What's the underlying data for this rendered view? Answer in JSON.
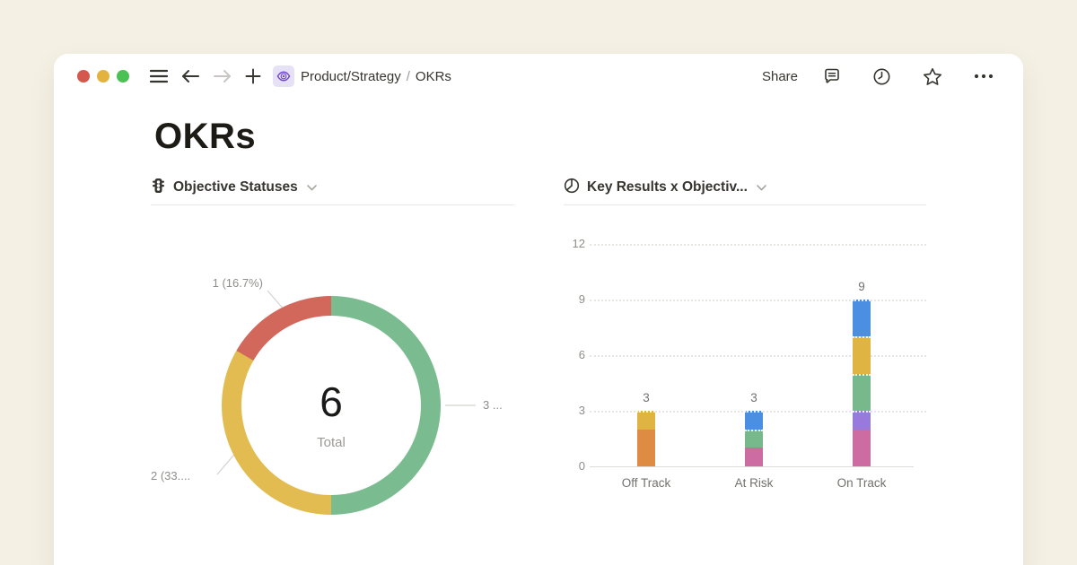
{
  "colors": {
    "background": "#F5F0E4",
    "card": "#FFFFFF",
    "text_dark": "#37352F",
    "text_gray": "#8F8E8B",
    "accent_purple": "#7A4FD8",
    "traffic_red": "#D5584E",
    "traffic_yellow": "#E3B33F",
    "traffic_green": "#4BC053"
  },
  "window": {
    "breadcrumb": {
      "parent": "Product/Strategy",
      "separator": "/",
      "current": "OKRs"
    },
    "share_label": "Share",
    "icons": [
      "sidebar-menu-icon",
      "back-arrow-icon",
      "forward-arrow-icon",
      "new-page-icon",
      "page-eye-icon",
      "comments-icon",
      "updates-clock-icon",
      "favorite-star-icon",
      "more-options-icon"
    ]
  },
  "page": {
    "title": "OKRs"
  },
  "sections": {
    "donut": {
      "title": "Objective Statuses",
      "icon": "traffic-light-icon"
    },
    "bar": {
      "title": "Key Results x Objectiv...",
      "icon": "pie-chart-icon"
    }
  },
  "chart_data": [
    {
      "type": "pie",
      "subtype": "donut",
      "title": "Objective Statuses",
      "center_value": "6",
      "center_label": "Total",
      "total": 6,
      "start_angle": "top",
      "direction": "clockwise",
      "slices": [
        {
          "value": 3,
          "percent": 50.0,
          "label": "3 ...",
          "color": "#7ABC90"
        },
        {
          "value": 2,
          "percent": 33.3,
          "label": "2 (33....",
          "color": "#E2BC50"
        },
        {
          "value": 1,
          "percent": 16.7,
          "label": "1 (16.7%)",
          "color": "#D2685C"
        }
      ]
    },
    {
      "type": "bar",
      "stacked": true,
      "title": "Key Results x Objectiv...",
      "categories": [
        "Off Track",
        "At Risk",
        "On Track"
      ],
      "totals": [
        3,
        3,
        9
      ],
      "ylim": [
        0,
        12
      ],
      "yticks": [
        0,
        3,
        6,
        9,
        12
      ],
      "grid": "dotted-horizontal",
      "legend": "none",
      "stacks": [
        [
          {
            "value": 2,
            "color": "#DE8C44"
          },
          {
            "value": 1,
            "color": "#E0B443"
          }
        ],
        [
          {
            "value": 1,
            "color": "#CD6CA2"
          },
          {
            "value": 1,
            "color": "#77B98A"
          },
          {
            "value": 1,
            "color": "#4B8FE2"
          }
        ],
        [
          {
            "value": 2,
            "color": "#CD6CA2"
          },
          {
            "value": 1,
            "color": "#9879DC"
          },
          {
            "value": 2,
            "color": "#77B98A"
          },
          {
            "value": 2,
            "color": "#E0B443"
          },
          {
            "value": 2,
            "color": "#4B8FE2"
          }
        ]
      ]
    }
  ]
}
